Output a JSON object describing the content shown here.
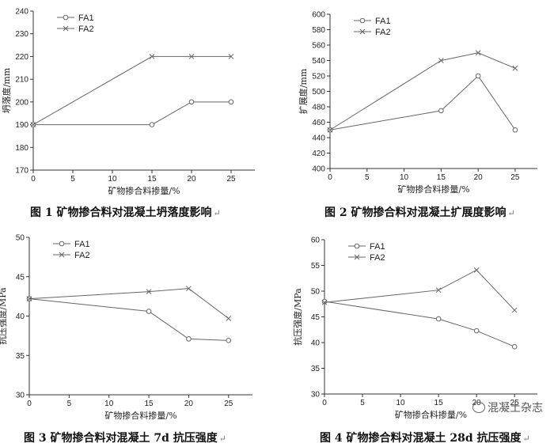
{
  "chart_data": [
    {
      "type": "line",
      "caption": "图 1  矿物掺合料对混凝土坍落度影响",
      "xlabel": "矿物掺合料掺量/%",
      "ylabel": "坍落度/mm",
      "xlim": [
        0,
        28
      ],
      "xticks": [
        0,
        5,
        10,
        15,
        20,
        25
      ],
      "ylim": [
        170,
        240
      ],
      "yticks": [
        170,
        180,
        190,
        200,
        210,
        220,
        230,
        240
      ],
      "legend": "top-left",
      "grid": false,
      "series": [
        {
          "name": "FA1",
          "marker": "circle",
          "x": [
            0,
            15,
            20,
            25
          ],
          "y": [
            190,
            190,
            200,
            200
          ]
        },
        {
          "name": "FA2",
          "marker": "cross",
          "x": [
            0,
            15,
            20,
            25
          ],
          "y": [
            190,
            220,
            220,
            220
          ]
        }
      ]
    },
    {
      "type": "line",
      "caption": "图 2  矿物掺合料对混凝土扩展度影响",
      "xlabel": "矿物掺合料掺量/%",
      "ylabel": "扩展度/mm",
      "xlim": [
        0,
        28
      ],
      "xticks": [
        0,
        5,
        10,
        15,
        20,
        25
      ],
      "ylim": [
        400,
        600
      ],
      "yticks": [
        400,
        420,
        440,
        460,
        480,
        500,
        520,
        540,
        560,
        580,
        600
      ],
      "legend": "top-left",
      "grid": false,
      "series": [
        {
          "name": "FA1",
          "marker": "circle",
          "x": [
            0,
            15,
            20,
            25
          ],
          "y": [
            450,
            475,
            520,
            450
          ]
        },
        {
          "name": "FA2",
          "marker": "cross",
          "x": [
            0,
            15,
            20,
            25
          ],
          "y": [
            450,
            540,
            550,
            530
          ]
        }
      ]
    },
    {
      "type": "line",
      "caption": "图 3  矿物掺合料对混凝土 7d 抗压强度",
      "xlabel": "矿物掺合料掺量/%",
      "ylabel": "抗压强度/MPa",
      "xlim": [
        0,
        28
      ],
      "xticks": [
        0,
        5,
        10,
        15,
        20,
        25
      ],
      "ylim": [
        30,
        50
      ],
      "yticks": [
        30,
        35,
        40,
        45,
        50
      ],
      "legend": "top-left",
      "grid": false,
      "series": [
        {
          "name": "FA1",
          "marker": "circle",
          "x": [
            0,
            15,
            20,
            25
          ],
          "y": [
            42.2,
            40.6,
            37.1,
            36.9
          ]
        },
        {
          "name": "FA2",
          "marker": "cross",
          "x": [
            0,
            15,
            20,
            25
          ],
          "y": [
            42.2,
            43.1,
            43.5,
            39.7
          ]
        }
      ]
    },
    {
      "type": "line",
      "caption": "图 4  矿物掺合料对混凝土 28d 抗压强度",
      "xlabel": "矿物掺合料掺量/%",
      "ylabel": "抗压强度/MPa",
      "xlim": [
        0,
        28
      ],
      "xticks": [
        0,
        5,
        10,
        15,
        20,
        25
      ],
      "ylim": [
        30,
        60
      ],
      "yticks": [
        30,
        35,
        40,
        45,
        50,
        55,
        60
      ],
      "legend": "top-left",
      "grid": false,
      "series": [
        {
          "name": "FA1",
          "marker": "circle",
          "x": [
            0,
            15,
            20,
            25
          ],
          "y": [
            48.0,
            44.6,
            42.3,
            39.2
          ]
        },
        {
          "name": "FA2",
          "marker": "cross",
          "x": [
            0,
            15,
            20,
            25
          ],
          "y": [
            47.8,
            50.2,
            54.1,
            46.3
          ]
        }
      ]
    }
  ],
  "watermark": "混凝土杂志",
  "colors": {
    "line": "#666666",
    "axis": "#333333",
    "text": "#222222"
  }
}
